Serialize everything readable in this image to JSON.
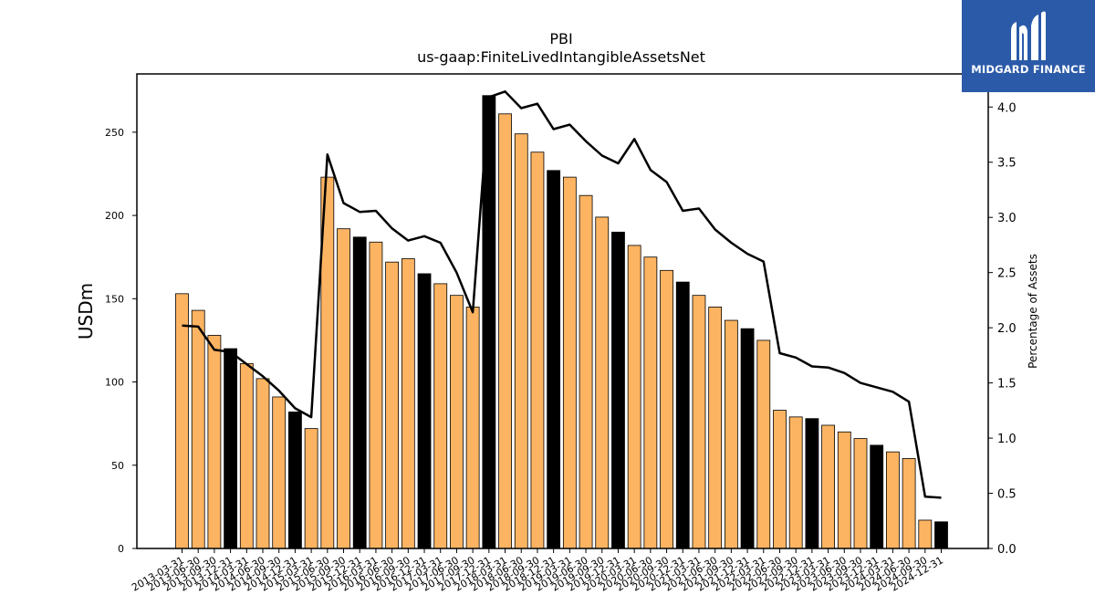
{
  "chart_data": {
    "type": "bar",
    "title": "PBI",
    "subtitle": "us-gaap:FiniteLivedIntangibleAssetsNet",
    "ylabel": "USDm",
    "y2label": "Percentage of Assets",
    "ylim": [
      0,
      285
    ],
    "y2lim": [
      0,
      4.3
    ],
    "yticks": [
      0,
      50,
      100,
      150,
      200,
      250
    ],
    "y2ticks": [
      "0.0",
      "0.5",
      "1.0",
      "1.5",
      "2.0",
      "2.5",
      "3.0",
      "3.5",
      "4.0"
    ],
    "categories": [
      "2013-03-31",
      "2013-06-30",
      "2013-09-30",
      "2013-12-31",
      "2014-03-31",
      "2014-06-30",
      "2014-09-30",
      "2014-12-31",
      "2015-03-31",
      "2015-06-30",
      "2015-09-30",
      "2015-12-31",
      "2016-03-31",
      "2016-06-30",
      "2016-09-30",
      "2016-12-31",
      "2017-03-31",
      "2017-06-30",
      "2017-09-30",
      "2017-12-31",
      "2018-03-31",
      "2018-06-30",
      "2018-09-30",
      "2018-12-31",
      "2019-03-31",
      "2019-06-30",
      "2019-09-30",
      "2019-12-31",
      "2020-03-31",
      "2020-06-30",
      "2020-09-30",
      "2020-12-31",
      "2021-03-31",
      "2021-06-30",
      "2021-09-30",
      "2021-12-31",
      "2022-03-31",
      "2022-06-30",
      "2022-09-30",
      "2022-12-31",
      "2023-03-31",
      "2023-06-30",
      "2023-09-30",
      "2023-12-31",
      "2024-03-31",
      "2024-06-30",
      "2024-09-30",
      "2024-12-31"
    ],
    "series": [
      {
        "type": "bar",
        "values": [
          153,
          143,
          128,
          120,
          111,
          102,
          91,
          82,
          72,
          223,
          192,
          187,
          184,
          172,
          174,
          165,
          159,
          152,
          145,
          272,
          261,
          249,
          238,
          227,
          223,
          212,
          199,
          190,
          182,
          175,
          167,
          160,
          152,
          145,
          137,
          132,
          125,
          83,
          79,
          78,
          74,
          70,
          66,
          62,
          58,
          54,
          17,
          16
        ]
      },
      {
        "type": "line",
        "axis": "right",
        "values": [
          2.02,
          2.01,
          1.8,
          1.78,
          1.67,
          1.56,
          1.43,
          1.27,
          1.19,
          3.57,
          3.13,
          3.05,
          3.06,
          2.9,
          2.79,
          2.83,
          2.77,
          2.5,
          2.14,
          4.09,
          4.14,
          3.99,
          4.03,
          3.8,
          3.84,
          3.69,
          3.56,
          3.49,
          3.71,
          3.43,
          3.32,
          3.06,
          3.08,
          2.89,
          2.77,
          2.67,
          2.6,
          1.77,
          1.73,
          1.65,
          1.64,
          1.59,
          1.5,
          1.46,
          1.42,
          1.33,
          0.47,
          0.46
        ]
      }
    ],
    "colors": {
      "bar": "#fdb462",
      "bar_highlight": "#000000",
      "line": "#000000",
      "edge": "#000000"
    },
    "grid": false
  },
  "branding": {
    "logo_text": "MIDGARD FINANCE",
    "logo_bg": "#2b5aa8",
    "logo_icon": "midgard-m-icon"
  }
}
